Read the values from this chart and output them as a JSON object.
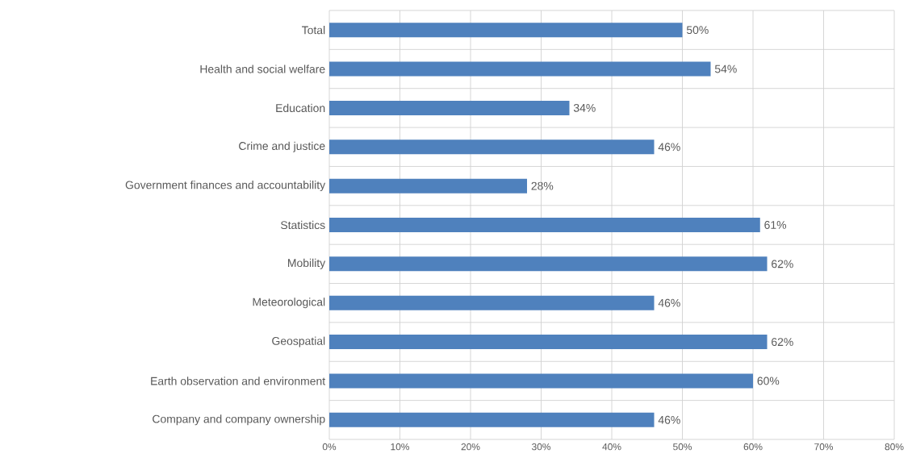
{
  "chart_data": {
    "type": "bar",
    "orientation": "horizontal",
    "categories": [
      "Total",
      "Health and social welfare",
      "Education",
      "Crime and justice",
      "Government finances and accountability",
      "Statistics",
      "Mobility",
      "Meteorological",
      "Geospatial",
      "Earth observation and environment",
      "Company and company ownership"
    ],
    "values": [
      50,
      54,
      34,
      46,
      28,
      61,
      62,
      46,
      62,
      60,
      46
    ],
    "value_labels": [
      "50%",
      "54%",
      "34%",
      "46%",
      "28%",
      "61%",
      "62%",
      "46%",
      "62%",
      "60%",
      "46%"
    ],
    "color": "#4f81bd",
    "xlim": [
      0,
      80
    ],
    "xticks": [
      {
        "value": 0,
        "label": "0%"
      },
      {
        "value": 10,
        "label": "10%"
      },
      {
        "value": 20,
        "label": "20%"
      },
      {
        "value": 30,
        "label": "30%"
      },
      {
        "value": 40,
        "label": "40%"
      },
      {
        "value": 50,
        "label": "50%"
      },
      {
        "value": 60,
        "label": "60%"
      },
      {
        "value": 70,
        "label": "70%"
      },
      {
        "value": 80,
        "label": "80%"
      }
    ],
    "grid": true
  }
}
